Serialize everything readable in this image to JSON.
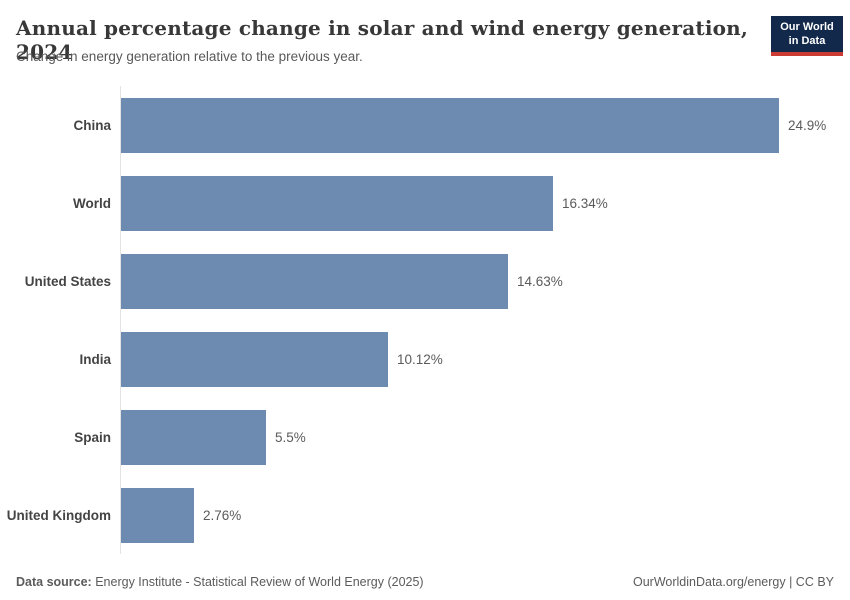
{
  "header": {
    "title": "Annual percentage change in solar and wind energy generation, 2024",
    "subtitle": "Change in energy generation relative to the previous year.",
    "logo": {
      "line1": "Our World",
      "line2": "in Data",
      "bg_color": "#12294b",
      "accent_color": "#cc3b33"
    }
  },
  "chart_data": {
    "type": "bar",
    "orientation": "horizontal",
    "title": "Annual percentage change in solar and wind energy generation, 2024",
    "subtitle": "Change in energy generation relative to the previous year.",
    "categories": [
      "China",
      "World",
      "United States",
      "India",
      "Spain",
      "United Kingdom"
    ],
    "values": [
      24.9,
      16.34,
      14.63,
      10.12,
      5.5,
      2.76
    ],
    "value_labels": [
      "24.9%",
      "16.34%",
      "14.63%",
      "10.12%",
      "5.5%",
      "2.76%"
    ],
    "unit": "%",
    "xlim": [
      0,
      26
    ],
    "grid": false,
    "legend": "none",
    "bar_color": "#6d8ab0",
    "axis_color": "#e3e3e3",
    "label_color": "#5b5b5b"
  },
  "footer": {
    "source_label": "Data source:",
    "source_text": " Energy Institute - Statistical Review of World Energy (2025)",
    "right_text": "OurWorldinData.org/energy | CC BY"
  }
}
